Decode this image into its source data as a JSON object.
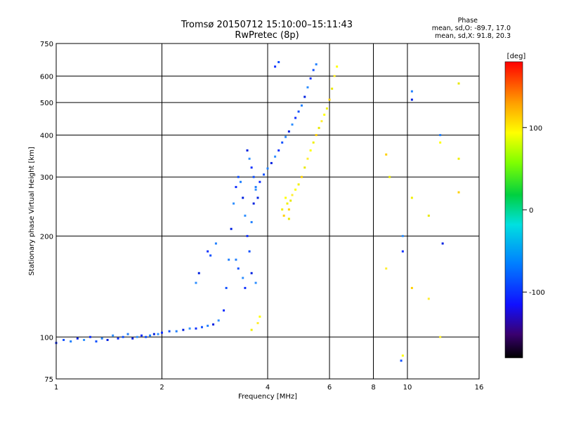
{
  "header": {
    "title": "Tromsø 20150712 15:10:00–15:11:43",
    "subtitle": "RwPretec (8p)",
    "phase_heading": "Phase",
    "phase_o": "mean, sd,O: -89.7, 17.0",
    "phase_x": "mean, sd,X:  91.8, 20.3"
  },
  "chart_data": {
    "type": "scatter",
    "title": "Tromsø 20150712 15:10:00–15:11:43",
    "subtitle": "RwPretec (8p)",
    "xlabel": "Frequency [MHz]",
    "ylabel": "Stationary phase Virtual Height [km]",
    "x_scale": "log",
    "y_scale": "log",
    "xlim": [
      1,
      16
    ],
    "ylim": [
      75,
      750
    ],
    "x_ticks": [
      1,
      2,
      4,
      6,
      8,
      10,
      16
    ],
    "y_ticks": [
      75,
      100,
      200,
      300,
      400,
      500,
      600,
      750
    ],
    "grid": true,
    "colorbar": {
      "label": "[deg]",
      "range": [
        -180,
        180
      ],
      "ticks": [
        -100,
        0,
        100
      ]
    },
    "series": [
      {
        "mode": "O",
        "points": [
          {
            "f": 1.0,
            "h": 96
          },
          {
            "f": 1.05,
            "h": 98
          },
          {
            "f": 1.1,
            "h": 97
          },
          {
            "f": 1.15,
            "h": 99
          },
          {
            "f": 1.2,
            "h": 98
          },
          {
            "f": 1.25,
            "h": 100
          },
          {
            "f": 1.3,
            "h": 97
          },
          {
            "f": 1.35,
            "h": 99
          },
          {
            "f": 1.4,
            "h": 98
          },
          {
            "f": 1.45,
            "h": 101
          },
          {
            "f": 1.5,
            "h": 99
          },
          {
            "f": 1.55,
            "h": 100
          },
          {
            "f": 1.6,
            "h": 102
          },
          {
            "f": 1.65,
            "h": 99
          },
          {
            "f": 1.7,
            "h": 100
          },
          {
            "f": 1.75,
            "h": 101
          },
          {
            "f": 1.8,
            "h": 100
          },
          {
            "f": 1.85,
            "h": 101
          },
          {
            "f": 1.9,
            "h": 102
          },
          {
            "f": 1.95,
            "h": 102
          },
          {
            "f": 2.0,
            "h": 103
          },
          {
            "f": 2.1,
            "h": 104
          },
          {
            "f": 2.2,
            "h": 104
          },
          {
            "f": 2.3,
            "h": 105
          },
          {
            "f": 2.4,
            "h": 106
          },
          {
            "f": 2.5,
            "h": 106
          },
          {
            "f": 2.6,
            "h": 107
          },
          {
            "f": 2.7,
            "h": 108
          },
          {
            "f": 2.8,
            "h": 109
          },
          {
            "f": 2.9,
            "h": 112
          },
          {
            "f": 3.0,
            "h": 120
          },
          {
            "f": 3.05,
            "h": 140
          },
          {
            "f": 3.1,
            "h": 170
          },
          {
            "f": 3.15,
            "h": 210
          },
          {
            "f": 3.2,
            "h": 250
          },
          {
            "f": 3.25,
            "h": 280
          },
          {
            "f": 3.3,
            "h": 300
          },
          {
            "f": 3.35,
            "h": 290
          },
          {
            "f": 3.4,
            "h": 260
          },
          {
            "f": 3.45,
            "h": 230
          },
          {
            "f": 3.5,
            "h": 200
          },
          {
            "f": 3.55,
            "h": 180
          },
          {
            "f": 3.6,
            "h": 220
          },
          {
            "f": 3.65,
            "h": 250
          },
          {
            "f": 3.7,
            "h": 275
          },
          {
            "f": 3.8,
            "h": 290
          },
          {
            "f": 3.9,
            "h": 305
          },
          {
            "f": 4.0,
            "h": 318
          },
          {
            "f": 4.1,
            "h": 330
          },
          {
            "f": 4.2,
            "h": 345
          },
          {
            "f": 4.3,
            "h": 360
          },
          {
            "f": 4.4,
            "h": 380
          },
          {
            "f": 4.5,
            "h": 395
          },
          {
            "f": 4.6,
            "h": 410
          },
          {
            "f": 4.7,
            "h": 430
          },
          {
            "f": 4.8,
            "h": 450
          },
          {
            "f": 4.9,
            "h": 470
          },
          {
            "f": 5.0,
            "h": 490
          },
          {
            "f": 5.1,
            "h": 520
          },
          {
            "f": 5.2,
            "h": 555
          },
          {
            "f": 5.3,
            "h": 590
          },
          {
            "f": 5.4,
            "h": 625
          },
          {
            "f": 5.5,
            "h": 650
          },
          {
            "f": 3.5,
            "h": 360
          },
          {
            "f": 3.55,
            "h": 340
          },
          {
            "f": 3.6,
            "h": 320
          },
          {
            "f": 3.65,
            "h": 300
          },
          {
            "f": 3.7,
            "h": 280
          },
          {
            "f": 3.75,
            "h": 260
          },
          {
            "f": 3.4,
            "h": 150
          },
          {
            "f": 3.45,
            "h": 140
          },
          {
            "f": 3.3,
            "h": 160
          },
          {
            "f": 3.25,
            "h": 170
          },
          {
            "f": 3.6,
            "h": 155
          },
          {
            "f": 3.7,
            "h": 145
          },
          {
            "f": 2.7,
            "h": 180
          },
          {
            "f": 2.75,
            "h": 175
          },
          {
            "f": 2.85,
            "h": 190
          },
          {
            "f": 2.55,
            "h": 155
          },
          {
            "f": 2.5,
            "h": 145
          },
          {
            "f": 4.2,
            "h": 640
          },
          {
            "f": 4.3,
            "h": 660
          },
          {
            "f": 10.3,
            "h": 540
          },
          {
            "f": 10.3,
            "h": 510
          },
          {
            "f": 9.7,
            "h": 200
          },
          {
            "f": 9.7,
            "h": 180
          },
          {
            "f": 9.6,
            "h": 85
          },
          {
            "f": 12.4,
            "h": 400
          },
          {
            "f": 12.6,
            "h": 190
          }
        ]
      },
      {
        "mode": "X",
        "points": [
          {
            "f": 4.5,
            "h": 260
          },
          {
            "f": 4.55,
            "h": 250
          },
          {
            "f": 4.6,
            "h": 240
          },
          {
            "f": 4.65,
            "h": 255
          },
          {
            "f": 4.7,
            "h": 265
          },
          {
            "f": 4.8,
            "h": 275
          },
          {
            "f": 4.9,
            "h": 285
          },
          {
            "f": 5.0,
            "h": 300
          },
          {
            "f": 5.1,
            "h": 320
          },
          {
            "f": 5.2,
            "h": 340
          },
          {
            "f": 5.3,
            "h": 360
          },
          {
            "f": 5.4,
            "h": 380
          },
          {
            "f": 5.5,
            "h": 400
          },
          {
            "f": 5.6,
            "h": 420
          },
          {
            "f": 5.7,
            "h": 440
          },
          {
            "f": 5.8,
            "h": 460
          },
          {
            "f": 5.9,
            "h": 480
          },
          {
            "f": 6.0,
            "h": 510
          },
          {
            "f": 6.1,
            "h": 550
          },
          {
            "f": 6.2,
            "h": 600
          },
          {
            "f": 6.3,
            "h": 640
          },
          {
            "f": 4.4,
            "h": 240
          },
          {
            "f": 4.45,
            "h": 230
          },
          {
            "f": 4.6,
            "h": 225
          },
          {
            "f": 3.75,
            "h": 110
          },
          {
            "f": 3.8,
            "h": 115
          },
          {
            "f": 3.6,
            "h": 105
          },
          {
            "f": 8.7,
            "h": 350
          },
          {
            "f": 8.9,
            "h": 300
          },
          {
            "f": 8.7,
            "h": 160
          },
          {
            "f": 9.7,
            "h": 88
          },
          {
            "f": 10.3,
            "h": 260
          },
          {
            "f": 10.3,
            "h": 140
          },
          {
            "f": 11.5,
            "h": 230
          },
          {
            "f": 11.5,
            "h": 130
          },
          {
            "f": 12.4,
            "h": 380
          },
          {
            "f": 14.0,
            "h": 340
          },
          {
            "f": 14.0,
            "h": 270
          },
          {
            "f": 14.0,
            "h": 570
          },
          {
            "f": 12.4,
            "h": 100
          }
        ]
      }
    ]
  }
}
